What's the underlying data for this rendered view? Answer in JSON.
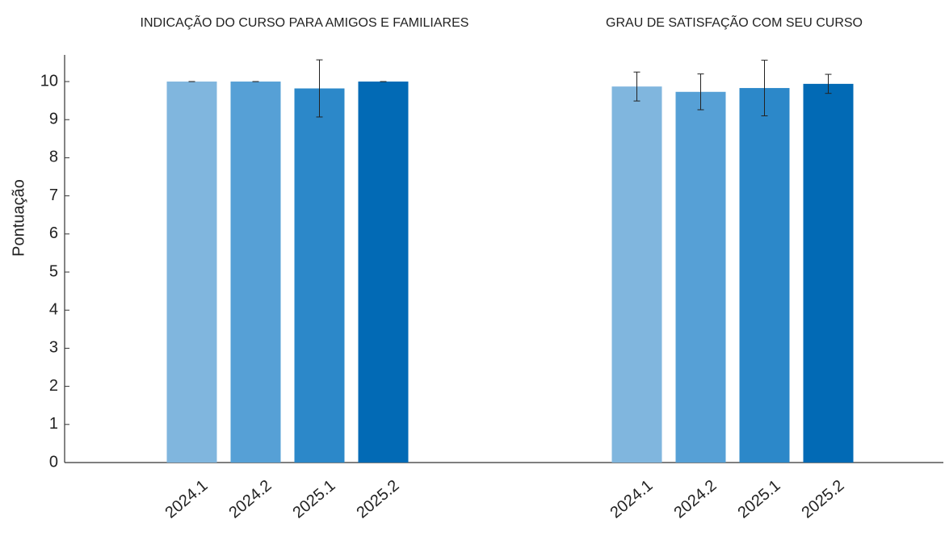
{
  "chart_data": {
    "type": "bar",
    "categories": [
      "INDICAÇÃO DO CURSO PARA AMIGOS E FAMILIARES",
      "GRAU DE SATISFAÇÃO COM SEU CURSO"
    ],
    "y_label": "Pontuação",
    "ylim": [
      0,
      10.7
    ],
    "yticks": [
      0,
      1,
      2,
      3,
      4,
      5,
      6,
      7,
      8,
      9,
      10
    ],
    "series": [
      {
        "name": "2024.1",
        "color": "#80b6de",
        "values": [
          10,
          9.87
        ],
        "errors": [
          0,
          0.38
        ]
      },
      {
        "name": "2024.2",
        "color": "#56a0d6",
        "values": [
          10,
          9.73
        ],
        "errors": [
          0,
          0.47
        ]
      },
      {
        "name": "2025.1",
        "color": "#2c88c9",
        "values": [
          9.82,
          9.83
        ],
        "errors": [
          0.75,
          0.73
        ]
      },
      {
        "name": "2025.2",
        "color": "#026ab5",
        "values": [
          10,
          9.94
        ],
        "errors": [
          0,
          0.25
        ]
      }
    ]
  }
}
